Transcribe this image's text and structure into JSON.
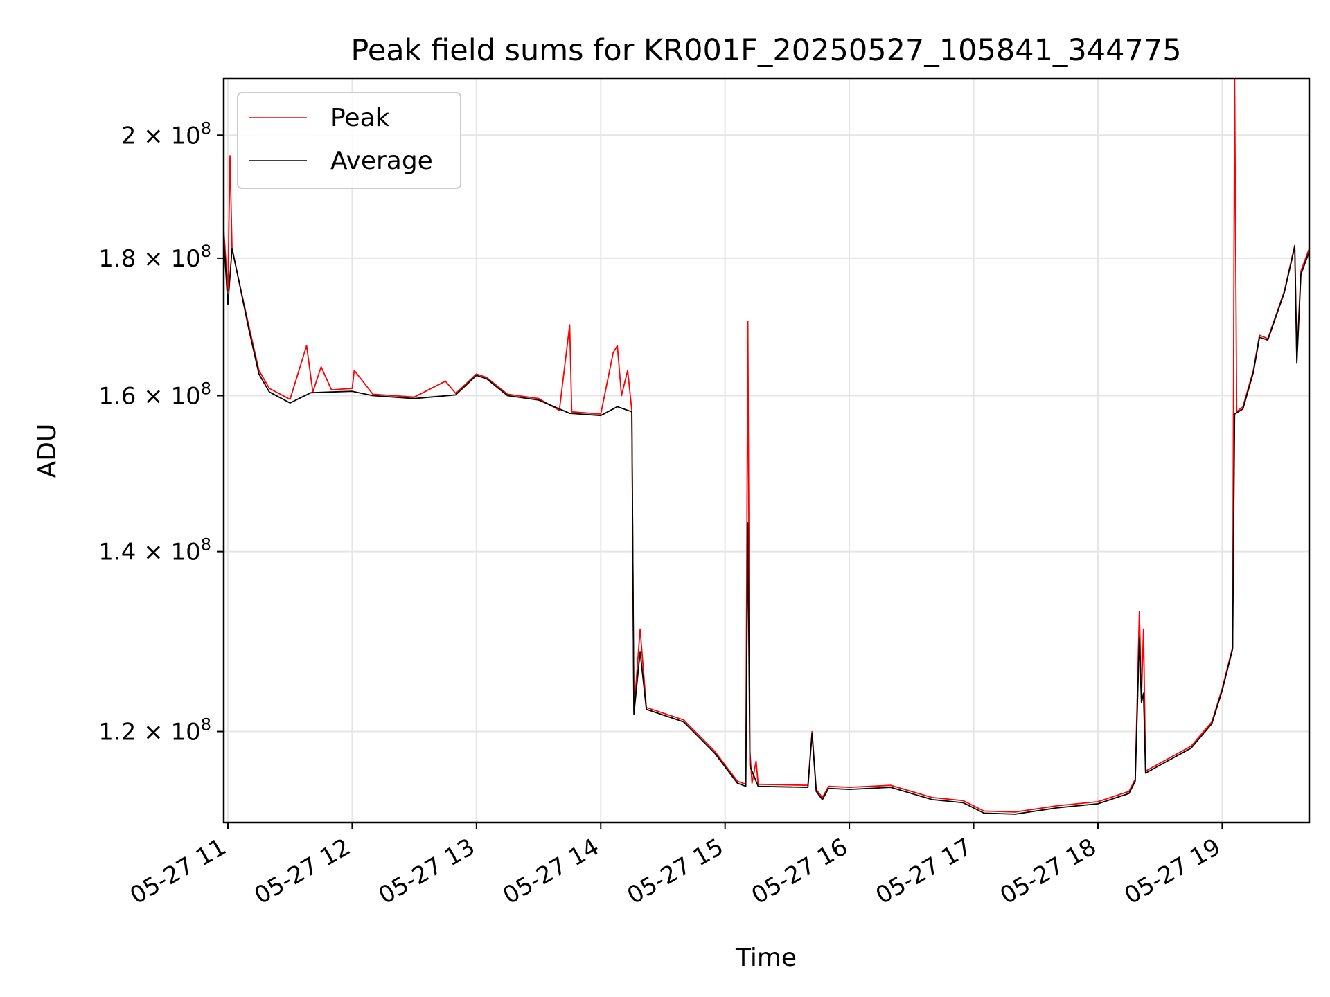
{
  "chart_data": {
    "type": "line",
    "title": "Peak field sums for KR001F_20250527_105841_344775",
    "xlabel": "Time",
    "ylabel": "ADU",
    "y_scale": "log",
    "grid": true,
    "legend_position": "top-left",
    "xlim": [
      "2025-05-27 10:58",
      "2025-05-27 19:42"
    ],
    "ylim": [
      111000000,
      210000000
    ],
    "x_ticks": [
      "05-27 11",
      "05-27 12",
      "05-27 13",
      "05-27 14",
      "05-27 15",
      "05-27 16",
      "05-27 17",
      "05-27 18",
      "05-27 19"
    ],
    "y_ticks": [
      {
        "value": 120000000,
        "mantissa": "1.2",
        "exponent": "8"
      },
      {
        "value": 140000000,
        "mantissa": "1.4",
        "exponent": "8"
      },
      {
        "value": 160000000,
        "mantissa": "1.6",
        "exponent": "8"
      },
      {
        "value": 180000000,
        "mantissa": "1.8",
        "exponent": "8"
      },
      {
        "value": 200000000,
        "mantissa": "2",
        "exponent": "8"
      }
    ],
    "times_sign": "×",
    "y_tick_base": "10",
    "series": [
      {
        "name": "Peak",
        "color": "#ff0000",
        "points": [
          [
            "2025-05-27 10:58",
            184500000
          ],
          [
            "2025-05-27 11:00",
            175000000
          ],
          [
            "2025-05-27 11:01",
            196500000
          ],
          [
            "2025-05-27 11:02",
            181500000
          ],
          [
            "2025-05-27 11:05",
            177000000
          ],
          [
            "2025-05-27 11:10",
            170000000
          ],
          [
            "2025-05-27 11:15",
            163500000
          ],
          [
            "2025-05-27 11:20",
            161000000
          ],
          [
            "2025-05-27 11:30",
            159500000
          ],
          [
            "2025-05-27 11:38",
            167000000
          ],
          [
            "2025-05-27 11:41",
            160500000
          ],
          [
            "2025-05-27 11:45",
            164000000
          ],
          [
            "2025-05-27 11:50",
            160800000
          ],
          [
            "2025-05-27 12:00",
            161000000
          ],
          [
            "2025-05-27 12:01",
            163500000
          ],
          [
            "2025-05-27 12:10",
            160200000
          ],
          [
            "2025-05-27 12:30",
            159800000
          ],
          [
            "2025-05-27 12:45",
            162000000
          ],
          [
            "2025-05-27 12:50",
            160300000
          ],
          [
            "2025-05-27 13:00",
            163000000
          ],
          [
            "2025-05-27 13:05",
            162500000
          ],
          [
            "2025-05-27 13:15",
            160200000
          ],
          [
            "2025-05-27 13:30",
            159600000
          ],
          [
            "2025-05-27 13:40",
            158000000
          ],
          [
            "2025-05-27 13:45",
            170000000
          ],
          [
            "2025-05-27 13:46",
            157800000
          ],
          [
            "2025-05-27 14:00",
            157500000
          ],
          [
            "2025-05-27 14:06",
            166000000
          ],
          [
            "2025-05-27 14:08",
            167000000
          ],
          [
            "2025-05-27 14:10",
            160000000
          ],
          [
            "2025-05-27 14:13",
            163500000
          ],
          [
            "2025-05-27 14:15",
            158000000
          ],
          [
            "2025-05-27 14:16",
            122000000
          ],
          [
            "2025-05-27 14:19",
            131000000
          ],
          [
            "2025-05-27 14:22",
            122500000
          ],
          [
            "2025-05-27 14:40",
            121200000
          ],
          [
            "2025-05-27 14:55",
            118000000
          ],
          [
            "2025-05-27 15:06",
            115000000
          ],
          [
            "2025-05-27 15:10",
            114700000
          ],
          [
            "2025-05-27 15:11",
            170500000
          ],
          [
            "2025-05-27 15:12",
            118000000
          ],
          [
            "2025-05-27 15:13",
            114800000
          ],
          [
            "2025-05-27 15:15",
            117000000
          ],
          [
            "2025-05-27 15:16",
            114700000
          ],
          [
            "2025-05-27 15:40",
            114600000
          ],
          [
            "2025-05-27 15:42",
            120000000
          ],
          [
            "2025-05-27 15:44",
            114200000
          ],
          [
            "2025-05-27 15:47",
            113400000
          ],
          [
            "2025-05-27 15:50",
            114500000
          ],
          [
            "2025-05-27 16:00",
            114400000
          ],
          [
            "2025-05-27 16:20",
            114600000
          ],
          [
            "2025-05-27 16:40",
            113400000
          ],
          [
            "2025-05-27 16:55",
            113100000
          ],
          [
            "2025-05-27 17:05",
            112100000
          ],
          [
            "2025-05-27 17:20",
            112000000
          ],
          [
            "2025-05-27 17:40",
            112600000
          ],
          [
            "2025-05-27 18:00",
            113000000
          ],
          [
            "2025-05-27 18:15",
            114000000
          ],
          [
            "2025-05-27 18:18",
            115200000
          ],
          [
            "2025-05-27 18:20",
            133000000
          ],
          [
            "2025-05-27 18:21",
            123500000
          ],
          [
            "2025-05-27 18:22",
            131000000
          ],
          [
            "2025-05-27 18:23",
            116000000
          ],
          [
            "2025-05-27 18:30",
            116800000
          ],
          [
            "2025-05-27 18:45",
            118500000
          ],
          [
            "2025-05-27 18:55",
            121000000
          ],
          [
            "2025-05-27 19:00",
            124500000
          ],
          [
            "2025-05-27 19:05",
            129000000
          ],
          [
            "2025-05-27 19:06",
            210000000
          ],
          [
            "2025-05-27 19:07",
            157800000
          ],
          [
            "2025-05-27 19:10",
            158500000
          ],
          [
            "2025-05-27 19:15",
            163500000
          ],
          [
            "2025-05-27 19:18",
            168500000
          ],
          [
            "2025-05-27 19:22",
            168000000
          ],
          [
            "2025-05-27 19:30",
            175000000
          ],
          [
            "2025-05-27 19:35",
            182000000
          ],
          [
            "2025-05-27 19:36",
            165000000
          ],
          [
            "2025-05-27 19:38",
            178000000
          ],
          [
            "2025-05-27 19:42",
            181500000
          ]
        ]
      },
      {
        "name": "Average",
        "color": "#000000",
        "points": [
          [
            "2025-05-27 10:58",
            183000000
          ],
          [
            "2025-05-27 11:00",
            173000000
          ],
          [
            "2025-05-27 11:02",
            181500000
          ],
          [
            "2025-05-27 11:05",
            177000000
          ],
          [
            "2025-05-27 11:10",
            169500000
          ],
          [
            "2025-05-27 11:15",
            163000000
          ],
          [
            "2025-05-27 11:20",
            160500000
          ],
          [
            "2025-05-27 11:30",
            159000000
          ],
          [
            "2025-05-27 11:40",
            160400000
          ],
          [
            "2025-05-27 11:50",
            160500000
          ],
          [
            "2025-05-27 12:00",
            160600000
          ],
          [
            "2025-05-27 12:10",
            160000000
          ],
          [
            "2025-05-27 12:30",
            159600000
          ],
          [
            "2025-05-27 12:50",
            160100000
          ],
          [
            "2025-05-27 13:00",
            162800000
          ],
          [
            "2025-05-27 13:05",
            162300000
          ],
          [
            "2025-05-27 13:15",
            160000000
          ],
          [
            "2025-05-27 13:30",
            159400000
          ],
          [
            "2025-05-27 13:45",
            157600000
          ],
          [
            "2025-05-27 14:00",
            157300000
          ],
          [
            "2025-05-27 14:08",
            158500000
          ],
          [
            "2025-05-27 14:15",
            157800000
          ],
          [
            "2025-05-27 14:16",
            121800000
          ],
          [
            "2025-05-27 14:19",
            128500000
          ],
          [
            "2025-05-27 14:22",
            122300000
          ],
          [
            "2025-05-27 14:40",
            121000000
          ],
          [
            "2025-05-27 14:55",
            117800000
          ],
          [
            "2025-05-27 15:06",
            114800000
          ],
          [
            "2025-05-27 15:10",
            114500000
          ],
          [
            "2025-05-27 15:11",
            143500000
          ],
          [
            "2025-05-27 15:12",
            116500000
          ],
          [
            "2025-05-27 15:16",
            114500000
          ],
          [
            "2025-05-27 15:40",
            114400000
          ],
          [
            "2025-05-27 15:42",
            119800000
          ],
          [
            "2025-05-27 15:44",
            114000000
          ],
          [
            "2025-05-27 15:47",
            113200000
          ],
          [
            "2025-05-27 15:50",
            114300000
          ],
          [
            "2025-05-27 16:00",
            114200000
          ],
          [
            "2025-05-27 16:20",
            114400000
          ],
          [
            "2025-05-27 16:40",
            113200000
          ],
          [
            "2025-05-27 16:55",
            112900000
          ],
          [
            "2025-05-27 17:05",
            111900000
          ],
          [
            "2025-05-27 17:20",
            111800000
          ],
          [
            "2025-05-27 17:40",
            112400000
          ],
          [
            "2025-05-27 18:00",
            112800000
          ],
          [
            "2025-05-27 18:15",
            113800000
          ],
          [
            "2025-05-27 18:18",
            115000000
          ],
          [
            "2025-05-27 18:20",
            130000000
          ],
          [
            "2025-05-27 18:21",
            123000000
          ],
          [
            "2025-05-27 18:22",
            124000000
          ],
          [
            "2025-05-27 18:23",
            115800000
          ],
          [
            "2025-05-27 18:30",
            116600000
          ],
          [
            "2025-05-27 18:45",
            118300000
          ],
          [
            "2025-05-27 18:55",
            120800000
          ],
          [
            "2025-05-27 19:00",
            124300000
          ],
          [
            "2025-05-27 19:05",
            128800000
          ],
          [
            "2025-05-27 19:06",
            157500000
          ],
          [
            "2025-05-27 19:10",
            158200000
          ],
          [
            "2025-05-27 19:15",
            163200000
          ],
          [
            "2025-05-27 19:18",
            168200000
          ],
          [
            "2025-05-27 19:22",
            167800000
          ],
          [
            "2025-05-27 19:30",
            174800000
          ],
          [
            "2025-05-27 19:35",
            181800000
          ],
          [
            "2025-05-27 19:36",
            164500000
          ],
          [
            "2025-05-27 19:38",
            177500000
          ],
          [
            "2025-05-27 19:42",
            181000000
          ]
        ]
      }
    ]
  }
}
